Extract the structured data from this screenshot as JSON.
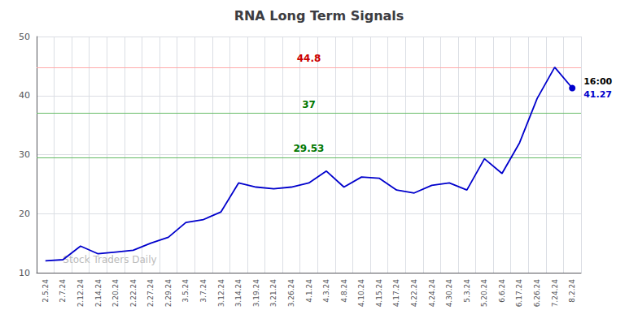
{
  "chart_data": {
    "type": "line",
    "title": "RNA Long Term Signals",
    "categories": [
      "2.5.24",
      "2.7.24",
      "2.12.24",
      "2.14.24",
      "2.20.24",
      "2.22.24",
      "2.27.24",
      "2.29.24",
      "3.5.24",
      "3.7.24",
      "3.12.24",
      "3.14.24",
      "3.19.24",
      "3.21.24",
      "3.26.24",
      "4.1.24",
      "4.3.24",
      "4.8.24",
      "4.10.24",
      "4.15.24",
      "4.17.24",
      "4.22.24",
      "4.24.24",
      "4.30.24",
      "5.3.24",
      "5.20.24",
      "6.6.24",
      "6.17.24",
      "6.26.24",
      "7.24.24",
      "8.2.24"
    ],
    "values": [
      12.0,
      12.2,
      14.5,
      13.2,
      13.5,
      13.8,
      15.0,
      16.0,
      18.5,
      19.0,
      20.3,
      25.2,
      24.5,
      24.2,
      24.5,
      25.2,
      27.2,
      24.5,
      26.2,
      26.0,
      24.0,
      23.5,
      24.8,
      25.2,
      24.0,
      29.3,
      26.8,
      32.0,
      39.5,
      44.8,
      41.27
    ],
    "color": "#0000cc",
    "hlines": [
      {
        "value": 44.8,
        "label": "44.8",
        "color": "#ffaaaa",
        "label_color": "#cc0000"
      },
      {
        "value": 37.0,
        "label": "37",
        "color": "#66bb66",
        "label_color": "#007700"
      },
      {
        "value": 29.53,
        "label": "29.53",
        "color": "#66bb66",
        "label_color": "#007700"
      }
    ],
    "annotations": [
      {
        "text": "16:00",
        "color": "#000000"
      },
      {
        "text": "41.27",
        "color": "#0000cc"
      }
    ],
    "watermark": "Stock Traders Daily",
    "ylim": [
      10,
      50
    ],
    "yticks": [
      10,
      20,
      30,
      40,
      50
    ],
    "grid": true
  }
}
